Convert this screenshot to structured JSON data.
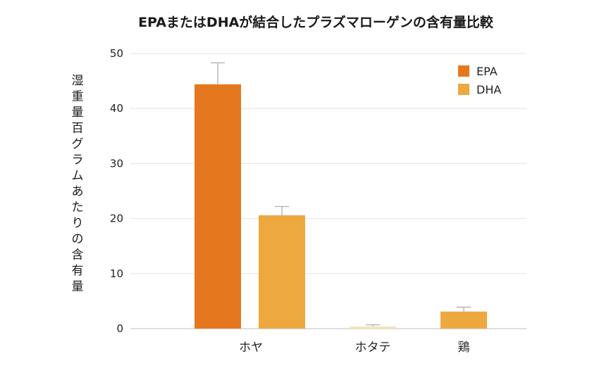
{
  "chart_data": {
    "type": "bar",
    "title": "EPAまたはDHAが結合したプラズマローゲンの含有量比較",
    "xlabel": "",
    "ylabel": "湿重量百グラムあたりの含有量",
    "categories": [
      "ホヤ",
      "ホタテ",
      "鶏"
    ],
    "ylim": [
      0,
      50
    ],
    "yticks": [
      0,
      10,
      20,
      30,
      40,
      50
    ],
    "grid": true,
    "legend_position": "top-right",
    "series": [
      {
        "name": "EPA",
        "color": "#E5781E",
        "values": [
          44.4,
          null,
          null
        ],
        "errors": [
          3.9,
          null,
          null
        ]
      },
      {
        "name": "DHA",
        "color": "#EDA83F",
        "values": [
          20.6,
          0.4,
          3.1
        ],
        "errors": [
          1.6,
          0.3,
          0.8
        ]
      }
    ],
    "extra_bars": [
      {
        "category": "ホタテ",
        "series": "DHA",
        "fill_color": "#F5E3B8"
      }
    ]
  }
}
